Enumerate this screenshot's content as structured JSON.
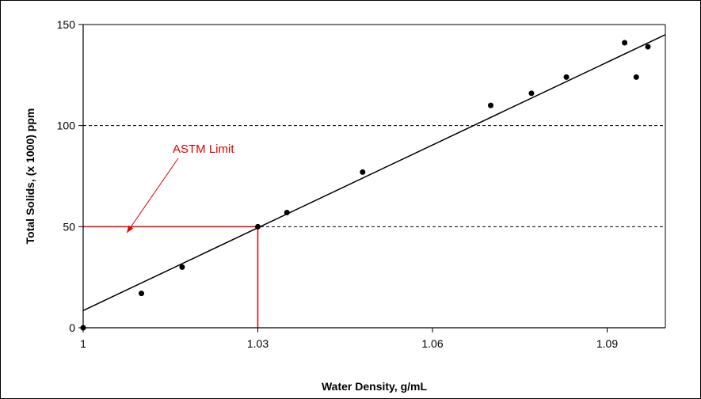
{
  "chart_data": {
    "type": "scatter",
    "title": "",
    "xlabel": "Water Density, g/mL",
    "ylabel": "Total Solids, (x 1000) ppm",
    "xlim": [
      1,
      1.1
    ],
    "ylim": [
      0,
      150
    ],
    "xticks": [
      1,
      1.03,
      1.06,
      1.09
    ],
    "xtick_labels": [
      "1",
      "1.03",
      "1.06",
      "1.09"
    ],
    "yticks": [
      0,
      50,
      100,
      150
    ],
    "ytick_labels": [
      "0",
      "50",
      "100",
      "150"
    ],
    "grid": "horizontal dashed",
    "legend": "none",
    "series": [
      {
        "points": [
          {
            "x": 1.0,
            "y": 0
          },
          {
            "x": 1.01,
            "y": 17
          },
          {
            "x": 1.017,
            "y": 30
          },
          {
            "x": 1.03,
            "y": 50
          },
          {
            "x": 1.035,
            "y": 57
          },
          {
            "x": 1.048,
            "y": 77
          },
          {
            "x": 1.07,
            "y": 110
          },
          {
            "x": 1.077,
            "y": 116
          },
          {
            "x": 1.083,
            "y": 124
          },
          {
            "x": 1.093,
            "y": 141
          },
          {
            "x": 1.095,
            "y": 124
          },
          {
            "x": 1.097,
            "y": 139
          }
        ]
      }
    ],
    "trendline": {
      "type": "linear",
      "start": {
        "x": 1.0,
        "y": 8.5
      },
      "end": {
        "x": 1.1,
        "y": 145
      }
    },
    "reference_lines": [
      {
        "from": {
          "x": 1.0,
          "y": 50
        },
        "to": {
          "x": 1.03,
          "y": 50
        }
      },
      {
        "from": {
          "x": 1.03,
          "y": 50
        },
        "to": {
          "x": 1.03,
          "y": 0
        }
      }
    ],
    "annotation": {
      "text": "ASTM Limit",
      "arrow_to": {
        "x": 1.0075,
        "y": 47
      }
    }
  },
  "colors": {
    "points": "#000000",
    "trendline": "#000000",
    "reference": "#e00000",
    "annotation": "#e00000",
    "grid": "#000000",
    "frame": "#000000"
  }
}
